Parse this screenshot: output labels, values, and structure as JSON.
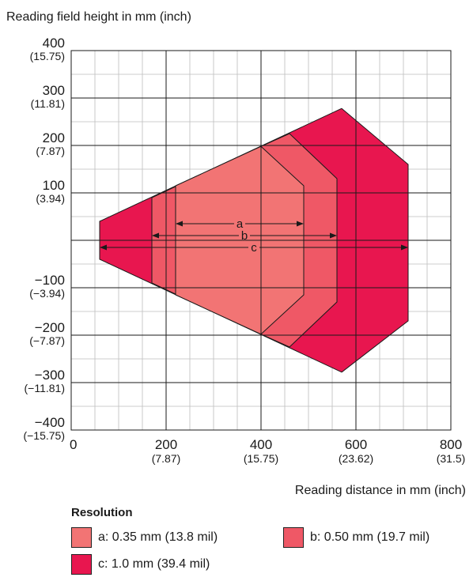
{
  "chart_data": {
    "type": "area",
    "title": "",
    "ylabel": "Reading field height in mm (inch)",
    "xlabel": "Reading distance in mm (inch)",
    "xlim": [
      0,
      800
    ],
    "ylim": [
      -400,
      400
    ],
    "grid": true,
    "minor_grid": true,
    "x_ticks": [
      {
        "value": 0,
        "label": "0",
        "sub": ""
      },
      {
        "value": 200,
        "label": "200",
        "sub": "(7.87)"
      },
      {
        "value": 400,
        "label": "400",
        "sub": "(15.75)"
      },
      {
        "value": 600,
        "label": "600",
        "sub": "(23.62)"
      },
      {
        "value": 800,
        "label": "800",
        "sub": "(31.5)"
      }
    ],
    "y_ticks": [
      {
        "value": 400,
        "label": "400",
        "sub": "(15.75)"
      },
      {
        "value": 300,
        "label": "300",
        "sub": "(11.81)"
      },
      {
        "value": 200,
        "label": "200",
        "sub": "(7.87)"
      },
      {
        "value": 100,
        "label": "100",
        "sub": "(3.94)"
      },
      {
        "value": -100,
        "label": "−100",
        "sub": "(−3.94)"
      },
      {
        "value": -200,
        "label": "−200",
        "sub": "(−7.87)"
      },
      {
        "value": -300,
        "label": "−300",
        "sub": "(−11.81)"
      },
      {
        "value": -400,
        "label": "−400",
        "sub": "(−15.75)"
      }
    ],
    "series": [
      {
        "name": "c",
        "color": "#e8164f",
        "points": [
          [
            60,
            40
          ],
          [
            570,
            278
          ],
          [
            710,
            160
          ],
          [
            710,
            -170
          ],
          [
            570,
            -278
          ],
          [
            60,
            -40
          ]
        ]
      },
      {
        "name": "b",
        "color": "#ef5866",
        "points": [
          [
            170,
            90
          ],
          [
            400,
            198
          ],
          [
            460,
            225
          ],
          [
            560,
            130
          ],
          [
            560,
            -130
          ],
          [
            460,
            -225
          ],
          [
            400,
            -198
          ],
          [
            170,
            -90
          ]
        ]
      },
      {
        "name": "a",
        "color": "#f27474",
        "points": [
          [
            220,
            115
          ],
          [
            400,
            198
          ],
          [
            490,
            115
          ],
          [
            490,
            -115
          ],
          [
            400,
            -198
          ],
          [
            220,
            -115
          ]
        ]
      }
    ],
    "ranges": [
      {
        "label": "a",
        "x0": 220,
        "x1": 490,
        "y": 35
      },
      {
        "label": "b",
        "x0": 170,
        "x1": 560,
        "y": 10
      },
      {
        "label": "c",
        "x0": 60,
        "x1": 710,
        "y": -15
      }
    ]
  },
  "legend": {
    "title": "Resolution",
    "items": [
      {
        "key": "a",
        "label": "a: 0.35 mm (13.8 mil)",
        "color": "#f27474"
      },
      {
        "key": "b",
        "label": "b: 0.50 mm (19.7 mil)",
        "color": "#ef5866"
      },
      {
        "key": "c",
        "label": "c: 1.0 mm (39.4 mil)",
        "color": "#e8164f"
      }
    ]
  }
}
